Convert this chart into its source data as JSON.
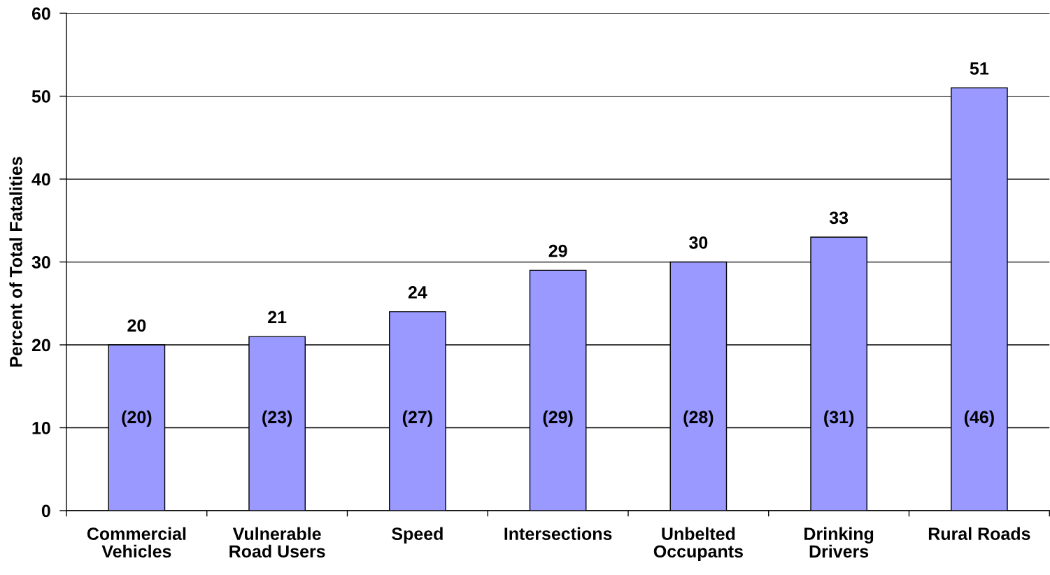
{
  "chart_data": {
    "type": "bar",
    "ylabel": "Percent of Total Fatalities",
    "categories": [
      "Commercial\nVehicles",
      "Vulnerable\nRoad Users",
      "Speed",
      "Intersections",
      "Unbelted\nOccupants",
      "Drinking\nDrivers",
      "Rural Roads"
    ],
    "values": [
      20,
      21,
      24,
      29,
      30,
      33,
      51
    ],
    "color": "#9999ff",
    "ylim": [
      0,
      60
    ],
    "yticks": [
      0,
      10,
      20,
      30,
      40,
      50,
      60
    ],
    "grid": "y",
    "data_labels": true,
    "annotations": [
      "(20)",
      "(23)",
      "(27)",
      "(29)",
      "(28)",
      "(31)",
      "(46)"
    ]
  }
}
